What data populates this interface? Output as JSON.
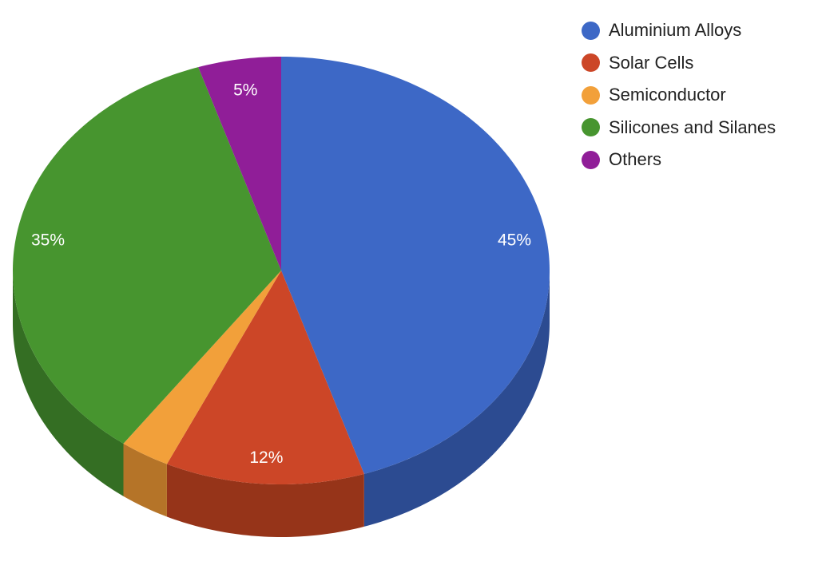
{
  "chart_data": {
    "type": "pie",
    "style": "3d",
    "legend_position": "right",
    "categories": [
      "Aluminium Alloys",
      "Solar Cells",
      "Semiconductor",
      "Silicones and Silanes",
      "Others"
    ],
    "values": [
      45,
      12,
      3,
      35,
      5
    ],
    "data_labels": [
      "45%",
      "12%",
      "",
      "35%",
      "5%"
    ],
    "colors": [
      "#3d68c6",
      "#cc4627",
      "#f2a03a",
      "#47952f",
      "#901e98"
    ],
    "side_colors": [
      "#2c4b91",
      "#963419",
      "#b57428",
      "#346e23",
      "#6a1670"
    ]
  }
}
